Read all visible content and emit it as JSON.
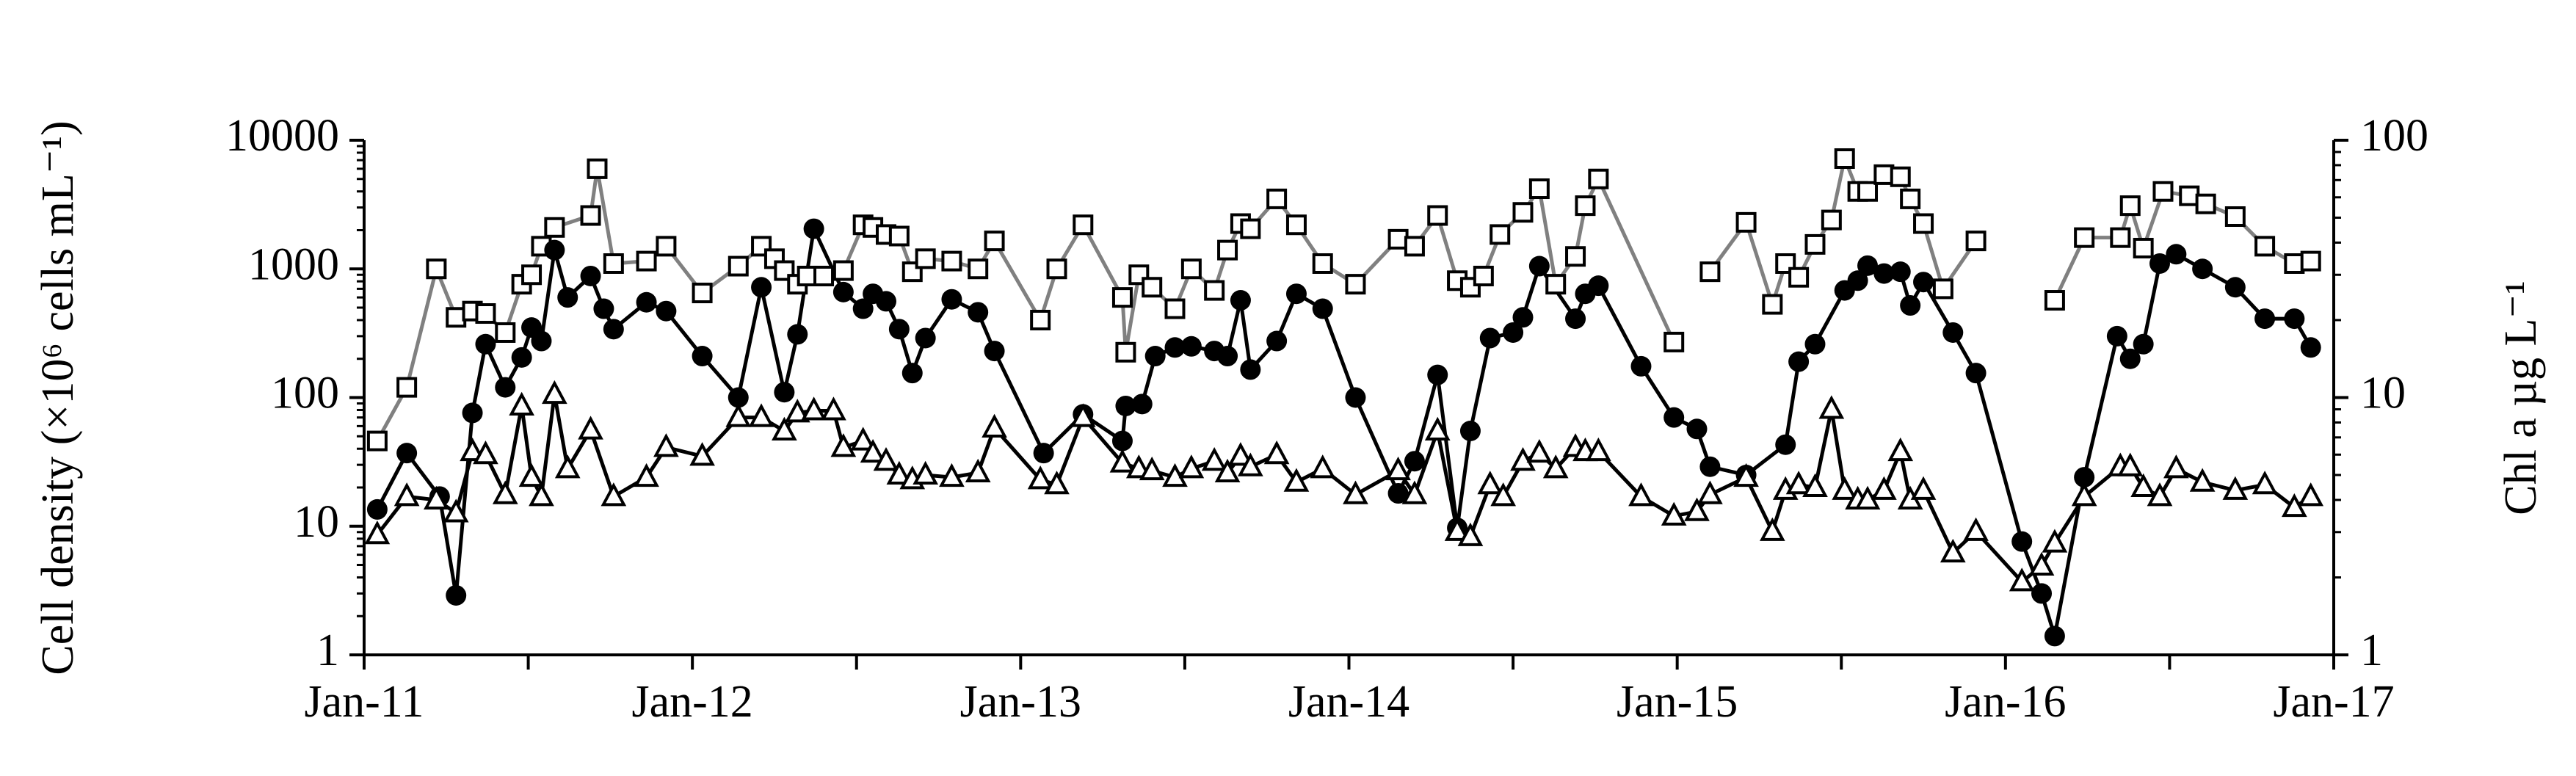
{
  "chart_data": {
    "type": "line",
    "y_label": "Cell density (×10⁶ cells mL⁻¹)",
    "y2_label": "Chl a µg L⁻¹",
    "xlim": [
      2011,
      2017
    ],
    "xticks": [
      {
        "value": 2011,
        "label": "Jan-11"
      },
      {
        "value": 2012,
        "label": "Jan-12"
      },
      {
        "value": 2013,
        "label": "Jan-13"
      },
      {
        "value": 2014,
        "label": "Jan-14"
      },
      {
        "value": 2015,
        "label": "Jan-15"
      },
      {
        "value": 2016,
        "label": "Jan-16"
      },
      {
        "value": 2017,
        "label": "Jan-17"
      }
    ],
    "xminorticks": [
      2011.5,
      2012.5,
      2013.5,
      2014.5,
      2015.5,
      2016.5
    ],
    "ylim": [
      1,
      10000
    ],
    "yticks": [
      1,
      10,
      100,
      1000,
      10000
    ],
    "y2lim": [
      1,
      100
    ],
    "y2ticks": [
      1,
      10,
      100
    ],
    "log": true,
    "series": [
      {
        "color": "#808080",
        "marker": "square",
        "x": [
          2011.04,
          2011.13,
          2011.22,
          2011.28,
          2011.33,
          2011.37,
          2011.43,
          2011.48,
          2011.51,
          2011.54,
          2011.58,
          2011.69,
          2011.71,
          2011.76,
          2011.86,
          2011.92,
          2012.03,
          2012.14,
          2012.21,
          2012.25,
          2012.28,
          2012.32,
          2012.35,
          2012.4,
          2012.46,
          2012.52,
          2012.55,
          2012.59,
          2012.63,
          2012.67,
          2012.71,
          2012.79,
          2012.87,
          2012.92,
          2013.06,
          2013.11,
          2013.19,
          2013.31,
          2013.32,
          2013.36,
          2013.4,
          2013.47,
          2013.52,
          2013.59,
          2013.63,
          2013.67,
          2013.7,
          2013.78,
          2013.84,
          2013.92,
          2014.02,
          2014.15,
          2014.2,
          2014.27,
          2014.33,
          2014.37,
          2014.41,
          2014.46,
          2014.53,
          2014.58,
          2014.63,
          2014.69,
          2014.72,
          2014.76,
          2014.99,
          null,
          2015.1,
          2015.21,
          2015.29,
          2015.33,
          2015.37,
          2015.42,
          2015.47,
          2015.51,
          2015.55,
          2015.58,
          2015.63,
          2015.68,
          2015.71,
          2015.75,
          2015.81,
          2015.91,
          null,
          2016.15,
          2016.24,
          2016.35,
          2016.38,
          2016.42,
          2016.48,
          2016.56,
          2016.61,
          2016.7,
          2016.79,
          2016.88,
          2016.93
        ],
        "values": [
          46,
          120,
          1000,
          420,
          470,
          450,
          320,
          760,
          900,
          1500,
          2100,
          2600,
          6000,
          1100,
          1150,
          1500,
          650,
          1050,
          1500,
          1200,
          970,
          760,
          880,
          880,
          970,
          2200,
          2100,
          1850,
          1800,
          950,
          1200,
          1150,
          1000,
          1650,
          400,
          1000,
          2200,
          600,
          225,
          900,
          720,
          490,
          1000,
          680,
          1400,
          2250,
          2050,
          3500,
          2200,
          1100,
          760,
          1700,
          1500,
          2600,
          810,
          720,
          880,
          1850,
          2750,
          4200,
          760,
          1250,
          3100,
          5000,
          270,
          null,
          950,
          2300,
          530,
          1100,
          860,
          1550,
          2400,
          7200,
          4000,
          4000,
          5400,
          5200,
          3500,
          2250,
          700,
          1650,
          null,
          570,
          1750,
          1750,
          3100,
          1450,
          4000,
          3700,
          3200,
          2550,
          1500,
          1100,
          1150
        ]
      },
      {
        "color": "#000000",
        "marker": "circle",
        "x": [
          2011.04,
          2011.13,
          2011.23,
          2011.28,
          2011.33,
          2011.37,
          2011.43,
          2011.48,
          2011.51,
          2011.54,
          2011.58,
          2011.62,
          2011.69,
          2011.73,
          2011.76,
          2011.86,
          2011.92,
          2012.03,
          2012.14,
          2012.21,
          2012.28,
          2012.32,
          2012.37,
          2012.46,
          2012.52,
          2012.55,
          2012.59,
          2012.63,
          2012.67,
          2012.71,
          2012.79,
          2012.87,
          2012.92,
          2013.07,
          2013.19,
          2013.31,
          2013.32,
          2013.37,
          2013.41,
          2013.47,
          2013.52,
          2013.59,
          2013.63,
          2013.67,
          2013.7,
          2013.78,
          2013.84,
          2013.92,
          2014.02,
          2014.15,
          2014.2,
          2014.27,
          2014.33,
          2014.37,
          2014.43,
          2014.5,
          2014.53,
          2014.58,
          2014.69,
          2014.72,
          2014.76,
          2014.89,
          2014.99,
          2015.06,
          2015.1,
          2015.21,
          2015.33,
          2015.37,
          2015.42,
          2015.51,
          2015.55,
          2015.58,
          2015.63,
          2015.68,
          2015.71,
          2015.75,
          2015.84,
          2015.91,
          2016.05,
          2016.11,
          2016.15,
          2016.24,
          2016.34,
          2016.38,
          2016.42,
          2016.47,
          2016.52,
          2016.6,
          2016.7,
          2016.79,
          2016.88,
          2016.93
        ],
        "values": [
          13.5,
          37,
          17,
          2.9,
          76,
          260,
          120,
          205,
          350,
          275,
          1400,
          600,
          880,
          490,
          340,
          550,
          470,
          210,
          100,
          720,
          110,
          310,
          2050,
          660,
          490,
          640,
          560,
          340,
          155,
          290,
          580,
          460,
          230,
          37,
          74,
          46,
          86,
          89,
          210,
          245,
          250,
          230,
          210,
          570,
          165,
          275,
          640,
          490,
          100,
          18,
          32,
          150,
          9.7,
          55,
          290,
          320,
          420,
          1050,
          410,
          640,
          740,
          175,
          70,
          57,
          29,
          25,
          43,
          190,
          260,
          680,
          810,
          1060,
          920,
          950,
          520,
          790,
          320,
          155,
          7.6,
          3.0,
          1.4,
          24,
          300,
          200,
          260,
          1100,
          1300,
          1000,
          720,
          410,
          410,
          245
        ]
      },
      {
        "color": "#000000",
        "marker": "triangle",
        "x": [
          2011.04,
          2011.13,
          2011.22,
          2011.28,
          2011.33,
          2011.37,
          2011.43,
          2011.48,
          2011.51,
          2011.54,
          2011.58,
          2011.62,
          2011.69,
          2011.76,
          2011.86,
          2011.92,
          2012.03,
          2012.14,
          2012.21,
          2012.28,
          2012.32,
          2012.37,
          2012.43,
          2012.46,
          2012.52,
          2012.55,
          2012.59,
          2012.63,
          2012.67,
          2012.71,
          2012.79,
          2012.87,
          2012.92,
          2013.06,
          2013.11,
          2013.19,
          2013.31,
          2013.36,
          2013.4,
          2013.47,
          2013.52,
          2013.59,
          2013.63,
          2013.67,
          2013.7,
          2013.78,
          2013.84,
          2013.92,
          2014.02,
          2014.15,
          2014.2,
          2014.27,
          2014.33,
          2014.37,
          2014.43,
          2014.47,
          2014.53,
          2014.58,
          2014.63,
          2014.69,
          2014.72,
          2014.76,
          2014.89,
          2014.99,
          2015.06,
          2015.1,
          2015.21,
          2015.29,
          2015.33,
          2015.37,
          2015.42,
          2015.47,
          2015.51,
          2015.55,
          2015.58,
          2015.63,
          2015.68,
          2015.71,
          2015.75,
          2015.84,
          2015.91,
          2016.05,
          2016.11,
          2016.15,
          2016.24,
          2016.35,
          2016.38,
          2016.42,
          2016.47,
          2016.52,
          2016.6,
          2016.7,
          2016.79,
          2016.88,
          2016.93
        ],
        "values": [
          8.6,
          17,
          16,
          12.7,
          38,
          36,
          17.6,
          86,
          24,
          17,
          106,
          28,
          56,
          17,
          24,
          41,
          35,
          70,
          70,
          55,
          76,
          79,
          79,
          41,
          46,
          37,
          32,
          25,
          23,
          25,
          24,
          26,
          58,
          23,
          21,
          70,
          31,
          28,
          27,
          24,
          28,
          32,
          26,
          35,
          29,
          36,
          22,
          28,
          17.6,
          27,
          17.6,
          55,
          9.1,
          8.3,
          21,
          17,
          32,
          37,
          28,
          41,
          38,
          38,
          17,
          12,
          13,
          17.6,
          24,
          9.1,
          19,
          21,
          20,
          81,
          19,
          16,
          16,
          19,
          38,
          16,
          19,
          6.2,
          9.1,
          3.7,
          4.9,
          7.4,
          17,
          29,
          29,
          20,
          17,
          28,
          22,
          19,
          21,
          14,
          17
        ]
      }
    ]
  }
}
